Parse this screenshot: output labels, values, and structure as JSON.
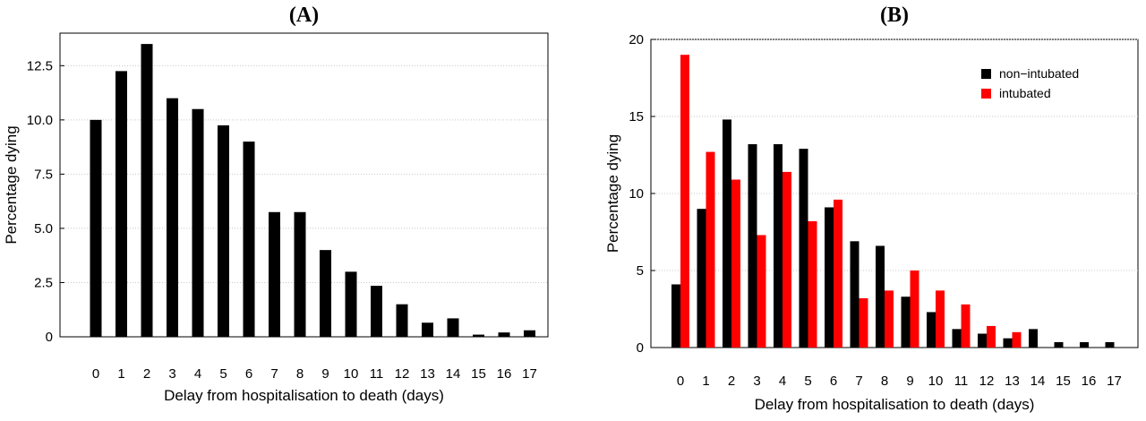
{
  "chart_data": [
    {
      "type": "bar",
      "panel": "(A)",
      "title": "(A)",
      "xlabel": "Delay from hospitalisation to death (days)",
      "ylabel": "Percentage dying",
      "categories": [
        "0",
        "1",
        "2",
        "3",
        "4",
        "5",
        "6",
        "7",
        "8",
        "9",
        "10",
        "11",
        "12",
        "13",
        "14",
        "15",
        "16",
        "17"
      ],
      "values": [
        10.0,
        12.25,
        13.5,
        11.0,
        10.5,
        9.75,
        9.0,
        5.75,
        5.75,
        4.0,
        3.0,
        2.35,
        1.5,
        0.65,
        0.85,
        0.1,
        0.2,
        0.3
      ],
      "ylim": [
        0,
        14
      ],
      "yticks": [
        "0",
        "2.5",
        "5.0",
        "7.5",
        "10.0",
        "12.5"
      ],
      "ytick_values": [
        0,
        2.5,
        5.0,
        7.5,
        10.0,
        12.5
      ],
      "grid": "horizontal dotted",
      "colors": {
        "bar": "#000000"
      }
    },
    {
      "type": "bar",
      "panel": "(B)",
      "title": "(B)",
      "xlabel": "Delay from hospitalisation to death (days)",
      "ylabel": "Percentage dying",
      "categories": [
        "0",
        "1",
        "2",
        "3",
        "4",
        "5",
        "6",
        "7",
        "8",
        "9",
        "10",
        "11",
        "12",
        "13",
        "14",
        "15",
        "16",
        "17"
      ],
      "series": [
        {
          "name": "non−intubated",
          "color": "#000000",
          "values": [
            4.1,
            9.0,
            14.8,
            13.2,
            13.2,
            12.9,
            9.1,
            6.9,
            6.6,
            3.3,
            2.3,
            1.2,
            0.9,
            0.6,
            1.2,
            0.35,
            0.35,
            0.35
          ]
        },
        {
          "name": "intubated",
          "color": "#ff0000",
          "values": [
            19.0,
            12.7,
            10.9,
            7.3,
            11.4,
            8.2,
            9.6,
            3.2,
            3.7,
            5.0,
            3.7,
            2.8,
            1.4,
            1.0,
            null,
            null,
            null,
            null
          ]
        }
      ],
      "ylim": [
        0,
        20
      ],
      "yticks": [
        "0",
        "5",
        "10",
        "15",
        "20"
      ],
      "ytick_values": [
        0,
        5,
        10,
        15,
        20
      ],
      "legend_position": "top-right",
      "grid": "horizontal dotted"
    }
  ]
}
